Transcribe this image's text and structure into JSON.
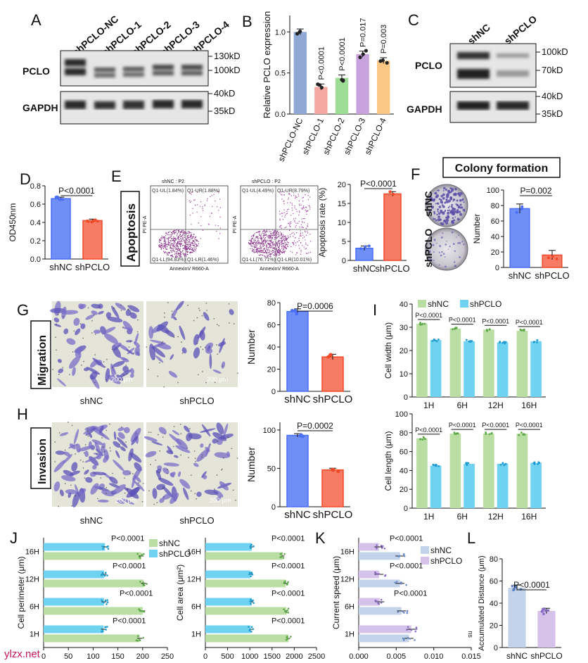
{
  "colors": {
    "nc_blue": "#4a6ef5",
    "nc_blue_fill": "#6f8ff7",
    "pclo_red": "#f04a2a",
    "pclo_red_fill": "#f87c63",
    "nc_green": "#b9dda3",
    "pclo_cyan": "#6fd2f0",
    "nc_light_blue": "#c3d3ea",
    "pclo_lilac": "#d4c2ea",
    "b_nc": "#8fa8d4",
    "b_sh1": "#f4a79f",
    "b_sh2": "#9ddd95",
    "b_sh3": "#c7a2dc",
    "b_sh4": "#fbc785"
  },
  "panels": {
    "A": {
      "letter": "A",
      "lanes": [
        "shPCLO-NC",
        "shPCLO-1",
        "shPCLO-2",
        "shPCLO-3",
        "shPCLO-4"
      ],
      "row1": "PCLO",
      "row2": "GAPDH",
      "m1": "130kD",
      "m2": "100kD",
      "m3": "40kD",
      "m4": "35kD"
    },
    "B": {
      "letter": "B",
      "chart_data": {
        "type": "bar",
        "ylabel": "Relative PCLO expression",
        "ylim": [
          0,
          1.2
        ],
        "yticks": [
          "0.0",
          "0.5",
          "1.0"
        ],
        "categories": [
          "shPCLO-NC",
          "shPCLO-1",
          "shPCLO-2",
          "shPCLO-3",
          "shPCLO-4"
        ],
        "values": [
          1.0,
          0.33,
          0.44,
          0.73,
          0.65
        ],
        "pvalues": [
          "",
          "P<0.0001",
          "P<0.0001",
          "P=0.017",
          "P=0.003"
        ]
      }
    },
    "C": {
      "letter": "C",
      "lanes": [
        "shNC",
        "shPCLO"
      ],
      "row1": "PCLO",
      "row2": "GAPDH",
      "m1": "100kD",
      "m2": "70kD",
      "m3": "40kD",
      "m4": "35kD"
    },
    "D": {
      "letter": "D",
      "chart_data": {
        "type": "bar",
        "ylabel": "OD450nm",
        "ylim": [
          0,
          0.8
        ],
        "yticks": [
          "0.0",
          "0.2",
          "0.4",
          "0.6",
          "0.8"
        ],
        "categories": [
          "shNC",
          "shPCLO"
        ],
        "values": [
          0.66,
          0.42
        ],
        "pvalue": "P<0.0001"
      }
    },
    "E": {
      "letter": "E",
      "side_label": "Apoptosis",
      "flow": [
        {
          "title": "shNC : P2",
          "ul": "Q1-UL(1.84%)",
          "ur": "Q1-UR(1.88%)",
          "ll": "Q1-LL(94.83%)",
          "lr": "Q1-LR(1.46%)"
        },
        {
          "title": "shPCLO : P2",
          "ul": "Q1-UL(4.49%)",
          "ur": "Q1-UR(8.79%)",
          "ll": "Q1-LL(76.71%)",
          "lr": "Q1-LR(10.01%)"
        }
      ],
      "flow_xlabel": "AnnexinV R660-A",
      "flow_ylabel": "PI PE-A",
      "chart_data": {
        "type": "bar",
        "ylabel": "Apoptosis rate  (%)",
        "ylim": [
          0,
          20
        ],
        "yticks": [
          "0",
          "5",
          "10",
          "15",
          "20"
        ],
        "categories": [
          "shNC",
          "shPCLO"
        ],
        "values": [
          3.2,
          17.5
        ],
        "pvalue": "P<0.0001"
      }
    },
    "F": {
      "letter": "F",
      "title": "Colony formation",
      "plate_labels": [
        "shNC",
        "shPCLO"
      ],
      "chart_data": {
        "type": "bar",
        "ylabel": "Number",
        "ylim": [
          0,
          100
        ],
        "yticks": [
          "0",
          "20",
          "40",
          "60",
          "80",
          "100"
        ],
        "categories": [
          "shNC",
          "shPCLO"
        ],
        "values": [
          76,
          16
        ],
        "pvalue": "P=0.002"
      }
    },
    "G": {
      "letter": "G",
      "side_label": "Migration",
      "image_labels": [
        "shNC",
        "shPCLO"
      ],
      "scale": "200 μm",
      "chart_data": {
        "type": "bar",
        "ylabel": "Number",
        "ylim": [
          0,
          80
        ],
        "yticks": [
          "0",
          "20",
          "40",
          "60",
          "80"
        ],
        "categories": [
          "shNC",
          "shPCLO"
        ],
        "values": [
          72,
          31
        ],
        "pvalue": "P=0.0006"
      }
    },
    "H": {
      "letter": "H",
      "side_label": "Invasion",
      "image_labels": [
        "shNC",
        "shPCLO"
      ],
      "scale": "200 μm",
      "chart_data": {
        "type": "bar",
        "ylabel": "Number",
        "ylim": [
          0,
          110
        ],
        "yticks": [
          "0",
          "50",
          "100"
        ],
        "categories": [
          "shNC",
          "shPCLO"
        ],
        "values": [
          93,
          48
        ],
        "pvalue": "P=0.0002"
      }
    },
    "I": {
      "letter": "I",
      "legend": [
        "shNC",
        "shPCLO"
      ],
      "chart_data": [
        {
          "type": "bar",
          "ylabel": "Cell width (μm)",
          "ylim": [
            0,
            40
          ],
          "yticks": [
            "0",
            "10",
            "20",
            "30",
            "40"
          ],
          "categories": [
            "1H",
            "6H",
            "12H",
            "16H"
          ],
          "series": [
            {
              "name": "shNC",
              "values": [
                31.5,
                29.5,
                29.0,
                28.5
              ]
            },
            {
              "name": "shPCLO",
              "values": [
                24.5,
                24.0,
                23.5,
                24.0
              ]
            }
          ],
          "pvalues": [
            "P<0.0001",
            "P<0.0001",
            "P<0.0001",
            "P<0.0001"
          ]
        },
        {
          "type": "bar",
          "ylabel": "Cell length (μm)",
          "ylim": [
            0,
            100
          ],
          "yticks": [
            "0",
            "20",
            "40",
            "60",
            "80",
            "100"
          ],
          "categories": [
            "1H",
            "6H",
            "12H",
            "16H"
          ],
          "series": [
            {
              "name": "shNC",
              "values": [
                74,
                79,
                79,
                79
              ]
            },
            {
              "name": "shPCLO",
              "values": [
                45,
                47,
                47,
                48
              ]
            }
          ],
          "pvalues": [
            "P<0.0001",
            "P<0.0001",
            "P<0.0001",
            "P<0.0001"
          ]
        }
      ]
    },
    "J": {
      "letter": "J",
      "legend": [
        "shNC",
        "shPCLO"
      ],
      "chart_data": [
        {
          "type": "bar",
          "orientation": "horizontal",
          "xlabel": "",
          "ylabel": "Cell perimeter (μm)",
          "xlim": [
            0,
            250
          ],
          "xticks": [
            "0",
            "50",
            "100",
            "150",
            "200",
            "250"
          ],
          "categories": [
            "16H",
            "12H",
            "6H",
            "1H"
          ],
          "series": [
            {
              "name": "shPCLO",
              "values": [
                124,
                122,
                122,
                121
              ]
            },
            {
              "name": "shNC",
              "values": [
                197,
                202,
                200,
                194
              ]
            }
          ],
          "pvalues": [
            "P<0.0001",
            "P<0.0001",
            "P<0.0001",
            "P<0.0001"
          ]
        },
        {
          "type": "bar",
          "orientation": "horizontal",
          "xlabel": "",
          "ylabel": "Cell area (μm²)",
          "xlim": [
            0,
            2500
          ],
          "xticks": [
            "0",
            "500",
            "1000",
            "1500",
            "2000",
            "2500"
          ],
          "categories": [
            "16H",
            "12H",
            "6H",
            "1H"
          ],
          "series": [
            {
              "name": "shPCLO",
              "values": [
                1040,
                1010,
                1040,
                1020
              ]
            },
            {
              "name": "shNC",
              "values": [
                1740,
                1810,
                1820,
                1870
              ]
            }
          ],
          "pvalues": [
            "P<0.0001",
            "P<0.0001",
            "P<0.0001",
            "P<0.0001"
          ]
        }
      ]
    },
    "K": {
      "letter": "K",
      "legend": [
        "shNC",
        "shPCLO"
      ],
      "chart_data": {
        "type": "bar",
        "orientation": "horizontal",
        "ylabel": "Current speed (μm)",
        "xlim": [
          0,
          0.015
        ],
        "xticks": [
          "0.000",
          "0.005",
          "0.010",
          "0.015"
        ],
        "categories": [
          "16H",
          "12H",
          "6H",
          "1H"
        ],
        "series": [
          {
            "name": "shPCLO",
            "values": [
              0.0027,
              0.0027,
              0.0028,
              0.007
            ]
          },
          {
            "name": "shNC",
            "values": [
              0.0055,
              0.0055,
              0.0057,
              0.0067
            ]
          }
        ],
        "pvalues": [
          "P<0.0001",
          "P<0.0001",
          "P<0.0001",
          "ns"
        ]
      }
    },
    "L": {
      "letter": "L",
      "chart_data": {
        "type": "bar",
        "ylabel": "Accumulated Distance (μm)",
        "ylim": [
          0,
          80
        ],
        "yticks": [
          "0",
          "20",
          "40",
          "60",
          "80"
        ],
        "categories": [
          "shNC",
          "shPCLO"
        ],
        "values": [
          54,
          33
        ],
        "pvalue": "P<0.0001"
      }
    }
  },
  "watermark": "ylzx.net"
}
